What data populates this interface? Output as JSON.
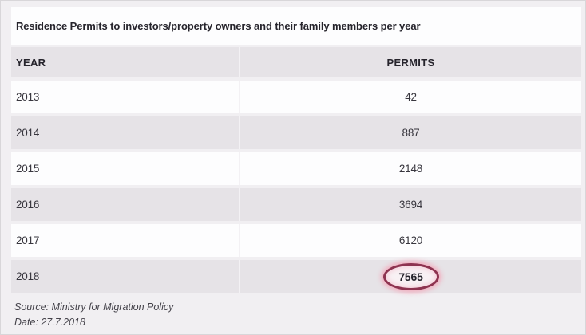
{
  "chart_data": {
    "type": "table",
    "title": "Residence Permits to investors/property owners and their family members per year",
    "columns": [
      "YEAR",
      "PERMITS"
    ],
    "rows": [
      {
        "year": "2013",
        "permits": "42"
      },
      {
        "year": "2014",
        "permits": "887"
      },
      {
        "year": "2015",
        "permits": "2148"
      },
      {
        "year": "2016",
        "permits": "3694"
      },
      {
        "year": "2017",
        "permits": "6120"
      },
      {
        "year": "2018",
        "permits": "7565"
      }
    ],
    "highlight": {
      "row": "2018",
      "value": "7565",
      "marker": "red-circle"
    },
    "source": "Source: Ministry for Migration Policy",
    "date": "Date: 27.7.2018"
  },
  "colors": {
    "background": "#f1eff2",
    "row_light": "#fdfdfe",
    "row_shaded": "#e6e3e7",
    "text_dark": "#26242c",
    "text_body": "#38363e",
    "circle_stroke": "#8e3350",
    "circle_glow": "#f3a7ba"
  }
}
